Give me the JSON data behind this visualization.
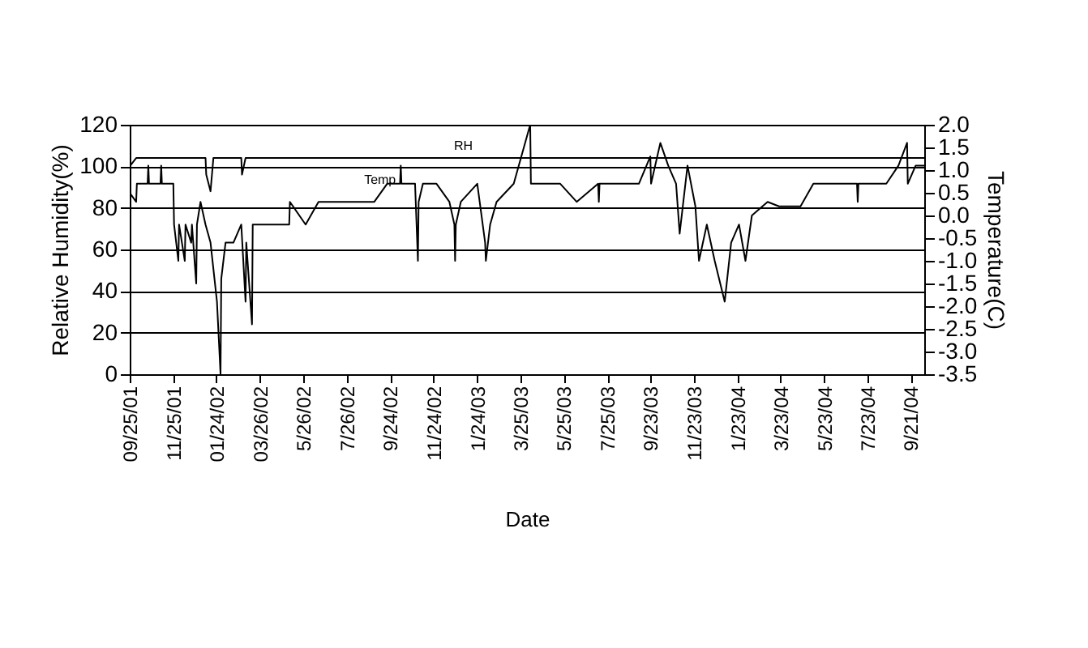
{
  "chart_data": {
    "type": "line",
    "xlabel": "Date",
    "ylabel": "Relative Humidity(%)",
    "y2label": "Temperature(C)",
    "xlim": [
      "2001-09-25",
      "2004-10-10"
    ],
    "xticks": [
      {
        "value": "2001-09-25",
        "label": "09/25/01"
      },
      {
        "value": "2001-11-25",
        "label": "11/25/01"
      },
      {
        "value": "2002-01-24",
        "label": "01/24/02"
      },
      {
        "value": "2002-03-26",
        "label": "03/26/02"
      },
      {
        "value": "2002-05-26",
        "label": "5/26/02"
      },
      {
        "value": "2002-07-26",
        "label": "7/26/02"
      },
      {
        "value": "2002-09-24",
        "label": "9/24/02"
      },
      {
        "value": "2002-11-24",
        "label": "11/24/02"
      },
      {
        "value": "2003-01-24",
        "label": "1/24/03"
      },
      {
        "value": "2003-03-25",
        "label": "3/25/03"
      },
      {
        "value": "2003-05-25",
        "label": "5/25/03"
      },
      {
        "value": "2003-07-25",
        "label": "7/25/03"
      },
      {
        "value": "2003-09-23",
        "label": "9/23/03"
      },
      {
        "value": "2003-11-23",
        "label": "11/23/03"
      },
      {
        "value": "2004-01-23",
        "label": "1/23/04"
      },
      {
        "value": "2004-03-23",
        "label": "3/23/04"
      },
      {
        "value": "2004-05-23",
        "label": "5/23/04"
      },
      {
        "value": "2004-07-23",
        "label": "7/23/04"
      },
      {
        "value": "2004-09-21",
        "label": "9/21/04"
      }
    ],
    "ylim": [
      0,
      120
    ],
    "yticks": [
      0,
      20,
      40,
      60,
      80,
      100,
      120
    ],
    "y2lim": [
      -3.5,
      2.0
    ],
    "y2ticks": [
      {
        "value": 2,
        "label": "2.0"
      },
      {
        "value": 1.5,
        "label": "1.5"
      },
      {
        "value": 1,
        "label": "1.0"
      },
      {
        "value": 0.5,
        "label": "0.5"
      },
      {
        "value": 0,
        "label": "0.0"
      },
      {
        "value": -0.5,
        "label": "-0.5"
      },
      {
        "value": -1,
        "label": "-1.0"
      },
      {
        "value": -1.5,
        "label": "-1.5"
      },
      {
        "value": -2,
        "label": "-2.0"
      },
      {
        "value": -2.5,
        "label": "-2.5"
      },
      {
        "value": -3,
        "label": "-3.0"
      },
      {
        "value": -3.5,
        "label": "-3.5"
      }
    ],
    "grid": "y",
    "marker": "none",
    "line_style": "solid",
    "series": [
      {
        "name": "RH",
        "color": "#000000",
        "x": [
          "2001-09-25",
          "2001-10-04",
          "2002-01-09",
          "2002-01-10",
          "2002-01-16",
          "2002-01-20",
          "2002-02-28",
          "2002-03-01",
          "2002-03-06",
          "2004-10-10"
        ],
        "values": [
          100,
          104,
          104,
          96,
          88,
          104,
          104,
          96,
          104,
          104
        ]
      },
      {
        "name": "Temp",
        "color": "#000000",
        "axis": "y2",
        "x": [
          "2001-09-25",
          "2001-10-04",
          "2001-10-05",
          "2001-10-20",
          "2001-10-21",
          "2001-10-22",
          "2001-11-07",
          "2001-11-08",
          "2001-11-09",
          "2001-11-25",
          "2001-11-26",
          "2001-12-02",
          "2001-12-03",
          "2001-12-11",
          "2001-12-12",
          "2001-12-20",
          "2001-12-21",
          "2001-12-27",
          "2001-12-28",
          "2002-01-02",
          "2002-01-09",
          "2002-01-16",
          "2002-01-25",
          "2002-01-30",
          "2002-01-31",
          "2002-02-06",
          "2002-02-17",
          "2002-02-28",
          "2002-03-06",
          "2002-03-07",
          "2002-03-15",
          "2002-03-16",
          "2002-05-06",
          "2002-05-07",
          "2002-05-29",
          "2002-06-16",
          "2002-07-09",
          "2002-09-02",
          "2002-09-20",
          "2002-10-08",
          "2002-10-09",
          "2002-10-10",
          "2002-10-29",
          "2002-11-02",
          "2002-11-03",
          "2002-11-09",
          "2002-11-28",
          "2002-12-16",
          "2002-12-23",
          "2002-12-24",
          "2002-12-25",
          "2003-01-01",
          "2003-01-24",
          "2003-02-04",
          "2003-02-05",
          "2003-02-11",
          "2003-02-20",
          "2003-03-16",
          "2003-04-08",
          "2003-04-09",
          "2003-05-20",
          "2003-06-12",
          "2003-07-12",
          "2003-07-13",
          "2003-07-14",
          "2003-09-07",
          "2003-09-23",
          "2003-09-24",
          "2003-10-07",
          "2003-10-18",
          "2003-10-29",
          "2003-11-03",
          "2003-11-14",
          "2003-11-25",
          "2003-11-30",
          "2003-12-11",
          "2003-12-22",
          "2004-01-05",
          "2004-01-14",
          "2004-01-25",
          "2004-02-03",
          "2004-02-12",
          "2004-03-05",
          "2004-03-21",
          "2004-04-20",
          "2004-05-08",
          "2004-07-08",
          "2004-07-09",
          "2004-07-10",
          "2004-08-18",
          "2004-09-04",
          "2004-09-16",
          "2004-09-17",
          "2004-09-28",
          "2004-10-10"
        ],
        "values": [
          0.5,
          0.3,
          0.7,
          0.7,
          1.1,
          0.7,
          0.7,
          1.1,
          0.7,
          0.7,
          -0.2,
          -1.0,
          -0.2,
          -1.0,
          -0.2,
          -0.6,
          -0.2,
          -1.5,
          -0.2,
          0.3,
          -0.2,
          -0.6,
          -1.9,
          -3.5,
          -1.4,
          -0.6,
          -0.6,
          -0.2,
          -1.9,
          -0.6,
          -2.4,
          -0.2,
          -0.2,
          0.3,
          -0.2,
          0.3,
          0.3,
          0.3,
          0.7,
          0.7,
          1.1,
          0.7,
          0.7,
          -1.0,
          0.3,
          0.7,
          0.7,
          0.3,
          -0.2,
          -1.0,
          -0.2,
          0.3,
          0.7,
          -0.6,
          -1.0,
          -0.2,
          0.3,
          0.7,
          2.0,
          0.7,
          0.7,
          0.3,
          0.7,
          0.3,
          0.7,
          0.7,
          1.3,
          0.7,
          1.6,
          1.1,
          0.7,
          -0.4,
          1.1,
          0.2,
          -1.0,
          -0.2,
          -1.0,
          -1.9,
          -0.6,
          -0.2,
          -1.0,
          0.0,
          0.3,
          0.2,
          0.2,
          0.7,
          0.7,
          0.3,
          0.7,
          0.7,
          1.1,
          1.6,
          0.7,
          1.1,
          1.1
        ]
      }
    ]
  }
}
